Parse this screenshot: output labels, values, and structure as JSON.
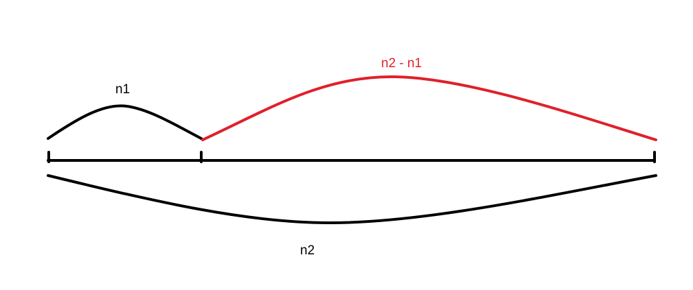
{
  "labels": {
    "n1": "n1",
    "difference": "n2 - n1",
    "n2": "n2"
  },
  "colors": {
    "background": "#ffffff",
    "primary_stroke": "#000000",
    "highlight_stroke": "#e0202a"
  }
}
